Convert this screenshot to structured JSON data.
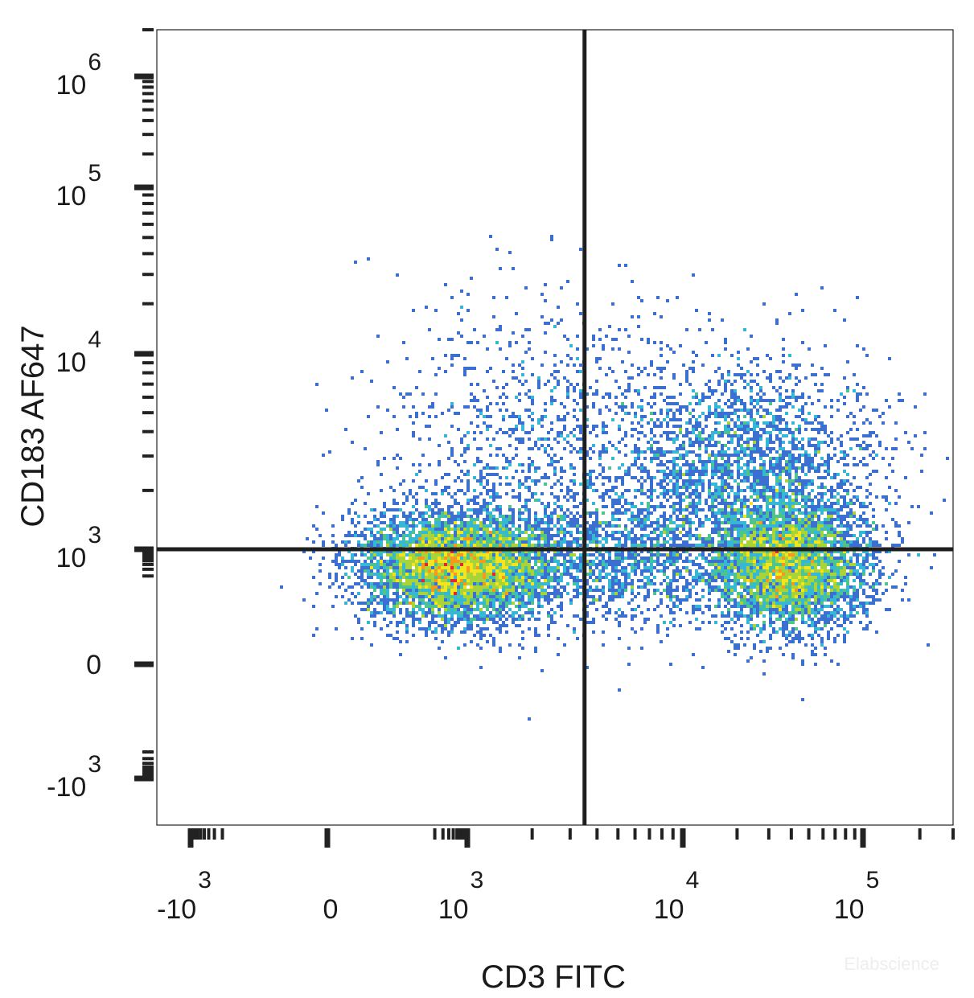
{
  "chart_data": {
    "type": "scatter",
    "subtype": "flow-cytometry density dot plot",
    "title": "",
    "xlabel": "CD3 FITC",
    "ylabel": "CD183 AF647",
    "x_scale": "biexponential (logicle)",
    "y_scale": "biexponential (logicle)",
    "xlim": [
      -2000,
      300000
    ],
    "ylim": [
      -2000,
      2000000
    ],
    "x_ticks": [
      {
        "value": -1000,
        "base": "-10",
        "exp": "3"
      },
      {
        "value": 0,
        "base": "0",
        "exp": ""
      },
      {
        "value": 1000,
        "base": "10",
        "exp": "3"
      },
      {
        "value": 10000,
        "base": "10",
        "exp": "4"
      },
      {
        "value": 100000,
        "base": "10",
        "exp": "5"
      }
    ],
    "y_ticks": [
      {
        "value": -1000,
        "base": "-10",
        "exp": "3"
      },
      {
        "value": 0,
        "base": "0",
        "exp": ""
      },
      {
        "value": 1000,
        "base": "10",
        "exp": "3"
      },
      {
        "value": 10000,
        "base": "10",
        "exp": "4"
      },
      {
        "value": 100000,
        "base": "10",
        "exp": "5"
      },
      {
        "value": 1000000,
        "base": "10",
        "exp": "6"
      }
    ],
    "quadrant_gate": {
      "x": 3500,
      "y": 1000
    },
    "populations": [
      {
        "name": "CD3- population",
        "center_x": 550,
        "center_y": 350,
        "density": "high"
      },
      {
        "name": "CD3+ population",
        "center_x": 40000,
        "center_y": 350,
        "density": "high"
      },
      {
        "name": "CD3+ CD183+ population",
        "center_x": 22000,
        "center_y": 2500,
        "density": "medium"
      },
      {
        "name": "CD3- CD183+ population",
        "center_x": 2000,
        "center_y": 3000,
        "density": "low"
      }
    ],
    "color_scale": [
      "#2b3c9a",
      "#3b6fd0",
      "#37b7d6",
      "#4cc48b",
      "#a8d43a",
      "#f2e51f",
      "#f39a1e",
      "#e6262a"
    ],
    "grid": false,
    "legend": "none"
  },
  "watermark": "Elabscience"
}
